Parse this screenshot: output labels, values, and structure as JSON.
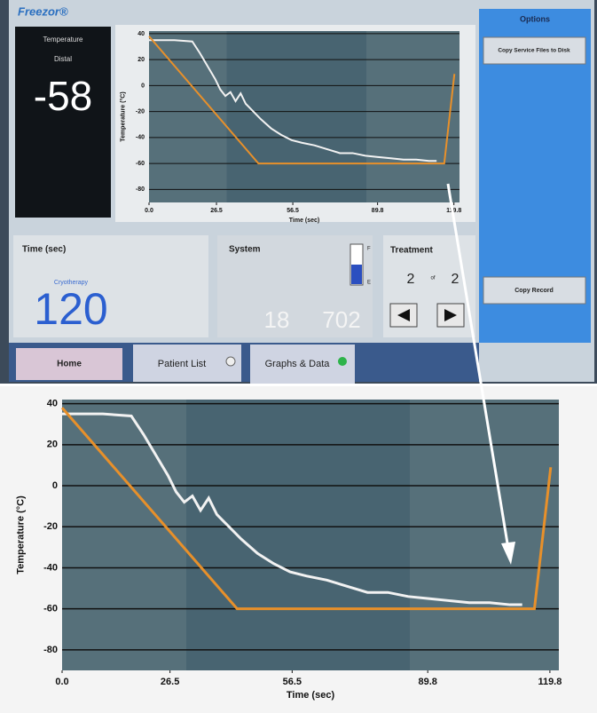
{
  "header": {
    "brand": "Freezor®"
  },
  "temperature_panel": {
    "title": "Temperature",
    "probe": "Distal",
    "value": -58
  },
  "options_panel": {
    "title": "Options",
    "buttons": [
      "Copy Service Files to Disk",
      "Copy Record"
    ]
  },
  "time_panel": {
    "title": "Time (sec)",
    "mode": "Cryotherapy",
    "value": 120
  },
  "system_panel": {
    "title": "System",
    "gauge_top": "F",
    "gauge_bottom": "E",
    "readouts": [
      18,
      702
    ]
  },
  "treatment_panel": {
    "title": "Treatment",
    "current": 2,
    "separator": "of",
    "total": 2
  },
  "tabs": [
    "Home",
    "Patient List",
    "Graphs & Data"
  ],
  "chart_data": {
    "type": "line",
    "x_label": "Time (sec)",
    "y_label": "Temperature (°C)",
    "xlim": [
      0,
      122
    ],
    "ylim": [
      -90,
      42
    ],
    "xticks": [
      {
        "value": 0,
        "label": "0.0"
      },
      26.5,
      56.5,
      89.8,
      119.8
    ],
    "yticks": [
      40,
      20,
      0,
      -20,
      -40,
      -60,
      -80
    ],
    "grid": true,
    "series": [
      {
        "color": "#f2f2f2",
        "x": [
          0,
          10,
          17,
          20,
          23,
          26,
          28,
          30,
          32,
          34,
          36,
          38,
          40,
          44,
          48,
          52,
          56,
          60,
          65,
          70,
          75,
          80,
          85,
          90,
          95,
          100,
          105,
          110,
          113
        ],
        "values": [
          35,
          35,
          34,
          25,
          15,
          5,
          -3,
          -8,
          -5,
          -12,
          -6,
          -14,
          -18,
          -26,
          -33,
          -38,
          -42,
          -44,
          -46,
          -49,
          -52,
          -52,
          -54,
          -55,
          -56,
          -57,
          -57,
          -58,
          -58
        ]
      },
      {
        "color": "#e8902a",
        "x": [
          0,
          43,
          116,
          120
        ],
        "values": [
          38,
          -60,
          -60,
          9
        ]
      }
    ]
  }
}
